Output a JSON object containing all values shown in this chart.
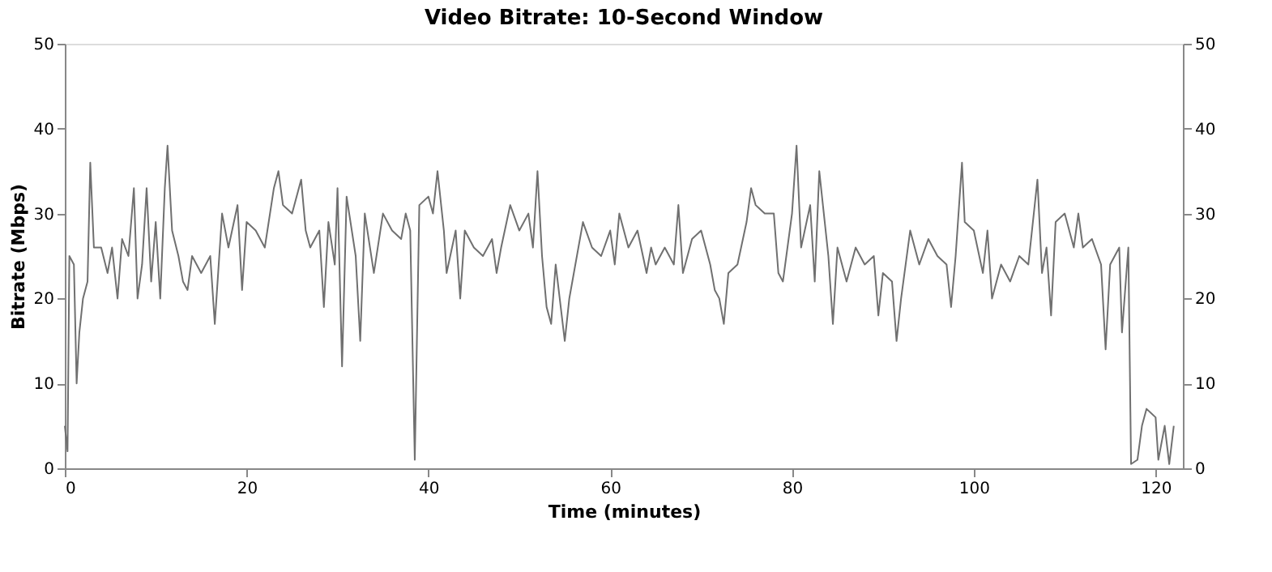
{
  "chart_data": {
    "type": "line",
    "title": "Video Bitrate: 10-Second Window",
    "xlabel": "Time (minutes)",
    "ylabel": "Bitrate (Mbps)",
    "xlim": [
      0,
      123
    ],
    "xticks": [
      0,
      20,
      40,
      60,
      80,
      100,
      120
    ],
    "ylim": [
      0,
      50
    ],
    "yticks": [
      0,
      10,
      20,
      30,
      40,
      50
    ],
    "y2lim": [
      0,
      50
    ],
    "y2ticks": [
      0,
      10,
      20,
      30,
      40,
      50
    ],
    "grid": false,
    "x": [
      0,
      0.3,
      0.5,
      1,
      1.3,
      1.6,
      2,
      2.5,
      2.8,
      3.2,
      4,
      4.7,
      5.2,
      5.8,
      6.3,
      7,
      7.6,
      8,
      8.5,
      9,
      9.5,
      10,
      10.5,
      11,
      11.3,
      11.8,
      12.5,
      13,
      13.5,
      14,
      15,
      16,
      16.5,
      17.3,
      18,
      19,
      19.5,
      20,
      21,
      22,
      23,
      23.5,
      24,
      25,
      26,
      26.5,
      27,
      28,
      28.5,
      29,
      29.7,
      30,
      30.5,
      31,
      32,
      32.5,
      33,
      34,
      35,
      36,
      37,
      37.5,
      38,
      38.5,
      39,
      40,
      40.5,
      41,
      41.7,
      42,
      43,
      43.5,
      44,
      45,
      46,
      47,
      47.5,
      48,
      49,
      50,
      51,
      51.5,
      52,
      52.5,
      53,
      53.5,
      54,
      55,
      55.5,
      56,
      57,
      58,
      59,
      60,
      60.5,
      61,
      62,
      63,
      64,
      64.5,
      65,
      66,
      67,
      67.5,
      68,
      69,
      70,
      71,
      71.5,
      72,
      72.5,
      73,
      74,
      75,
      75.5,
      76,
      77,
      78,
      78.5,
      79,
      80,
      80.5,
      81,
      82,
      82.5,
      83,
      84,
      84.5,
      85,
      86,
      87,
      88,
      89,
      89.5,
      90,
      91,
      91.5,
      92,
      93,
      94,
      95,
      96,
      97,
      97.5,
      98,
      98.7,
      99,
      100,
      101,
      101.5,
      102,
      103,
      104,
      105,
      106,
      107,
      107.5,
      108,
      108.5,
      109,
      110,
      111,
      111.5,
      112,
      113,
      114,
      114.5,
      115,
      116,
      116.3,
      117,
      117.3,
      118,
      118.5,
      119,
      120,
      120.3,
      121,
      121.5,
      122
    ],
    "series": [
      {
        "color": "#707070",
        "values": [
          5,
          2,
          25,
          24,
          10,
          16,
          20,
          22,
          36,
          26,
          26,
          23,
          26,
          20,
          27,
          25,
          33,
          20,
          24,
          33,
          22,
          29,
          20,
          33,
          38,
          28,
          25,
          22,
          21,
          25,
          23,
          25,
          17,
          30,
          26,
          31,
          21,
          29,
          28,
          26,
          33,
          35,
          31,
          30,
          34,
          28,
          26,
          28,
          19,
          29,
          24,
          33,
          12,
          32,
          25,
          15,
          30,
          23,
          30,
          28,
          27,
          30,
          28,
          1,
          31,
          32,
          30,
          35,
          28,
          23,
          28,
          20,
          28,
          26,
          25,
          27,
          23,
          26,
          31,
          28,
          30,
          26,
          35,
          25,
          19,
          17,
          24,
          15,
          20,
          23,
          29,
          26,
          25,
          28,
          24,
          30,
          26,
          28,
          23,
          26,
          24,
          26,
          24,
          31,
          23,
          27,
          28,
          24,
          21,
          20,
          17,
          23,
          24,
          29,
          33,
          31,
          30,
          30,
          23,
          22,
          30,
          38,
          26,
          31,
          22,
          35,
          25,
          17,
          26,
          22,
          26,
          24,
          25,
          18,
          23,
          22,
          15,
          20,
          28,
          24,
          27,
          25,
          24,
          19,
          25,
          36,
          29,
          28,
          23,
          28,
          20,
          24,
          22,
          25,
          24,
          34,
          23,
          26,
          18,
          29,
          30,
          26,
          30,
          26,
          27,
          24,
          14,
          24,
          26,
          16,
          26,
          0.5,
          1,
          5,
          7,
          6,
          1,
          5,
          0.5,
          5
        ]
      }
    ]
  }
}
